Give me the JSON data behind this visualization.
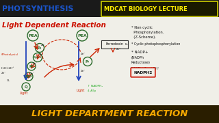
{
  "bg_color": "#e8e8e0",
  "top_bar_color": "#1a1a1a",
  "bottom_bar_color": "#c8850a",
  "title1": "PHOTSYNTHESIS",
  "title2": "MDCAT BIOLOGY LECTURE",
  "subtitle": "Light Dependent Reaction",
  "bottom_text": "LIGHT DEPARTMENT REACTION",
  "title1_color": "#1a55cc",
  "title2_color": "#ffee00",
  "subtitle_color": "#cc1100",
  "note1": "* Non cyclic",
  "note2": "  Phosphorylation.",
  "note3": "  (Z-Scheme).",
  "note4": "* Cyclic photophosphorylation",
  "circle_color": "#2a6a2a",
  "arrow_blue": "#2244bb",
  "arrow_red": "#cc2200",
  "arrow_green": "#22aa22",
  "photolysis_label": "(Photolysis)",
  "ferredoxin_label": "Ferredoxin",
  "nadp_label": "* NADP+",
  "nadph_label": "(NADPh",
  "reductase_label": "Reductase)",
  "product_label": "NADPH2",
  "mdcat_box_bg": "#1a1a00",
  "mdcat_box_border": "#cccc00",
  "diagram_bg": "#f0efe8"
}
